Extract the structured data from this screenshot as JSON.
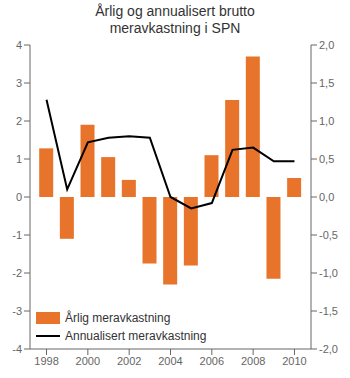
{
  "chart_data": {
    "type": "bar",
    "title": "Årlig og annualisert brutto\nmeravkastning i SPN",
    "x": [
      1998,
      1999,
      2000,
      2001,
      2002,
      2003,
      2004,
      2005,
      2006,
      2007,
      2008,
      2009,
      2010
    ],
    "xlim": [
      1997.2,
      2010.8
    ],
    "xticks": [
      1998,
      2000,
      2002,
      2004,
      2006,
      2008,
      2010
    ],
    "ylim": [
      -4,
      4
    ],
    "yticks": [
      -4,
      -3,
      -2,
      -1,
      0,
      1,
      2,
      3,
      4
    ],
    "y2lim": [
      -2.0,
      2.0
    ],
    "y2ticks": [
      {
        "value": -2.0,
        "label": "-2,0"
      },
      {
        "value": -1.5,
        "label": "-1,5"
      },
      {
        "value": -1.0,
        "label": "-1,0"
      },
      {
        "value": -0.5,
        "label": "-0,5"
      },
      {
        "value": 0.0,
        "label": "0,0"
      },
      {
        "value": 0.5,
        "label": "0,5"
      },
      {
        "value": 1.0,
        "label": "1,0"
      },
      {
        "value": 1.5,
        "label": "1,5"
      },
      {
        "value": 2.0,
        "label": "2,0"
      }
    ],
    "series": [
      {
        "name": "Årlig meravkastning",
        "type": "bar",
        "color": "#E8732A",
        "values": [
          1.28,
          -1.1,
          1.9,
          1.05,
          0.45,
          -1.75,
          -2.3,
          -1.8,
          1.1,
          2.55,
          3.7,
          -2.15,
          0.5
        ]
      },
      {
        "name": "Annualisert meravkastning",
        "type": "line",
        "axis": "y2",
        "color": "#000000",
        "values": [
          1.28,
          0.1,
          0.72,
          0.78,
          0.8,
          0.78,
          0.0,
          -0.15,
          -0.08,
          0.62,
          0.65,
          0.47,
          0.47
        ]
      }
    ],
    "legend": "lower left",
    "grid": false
  }
}
